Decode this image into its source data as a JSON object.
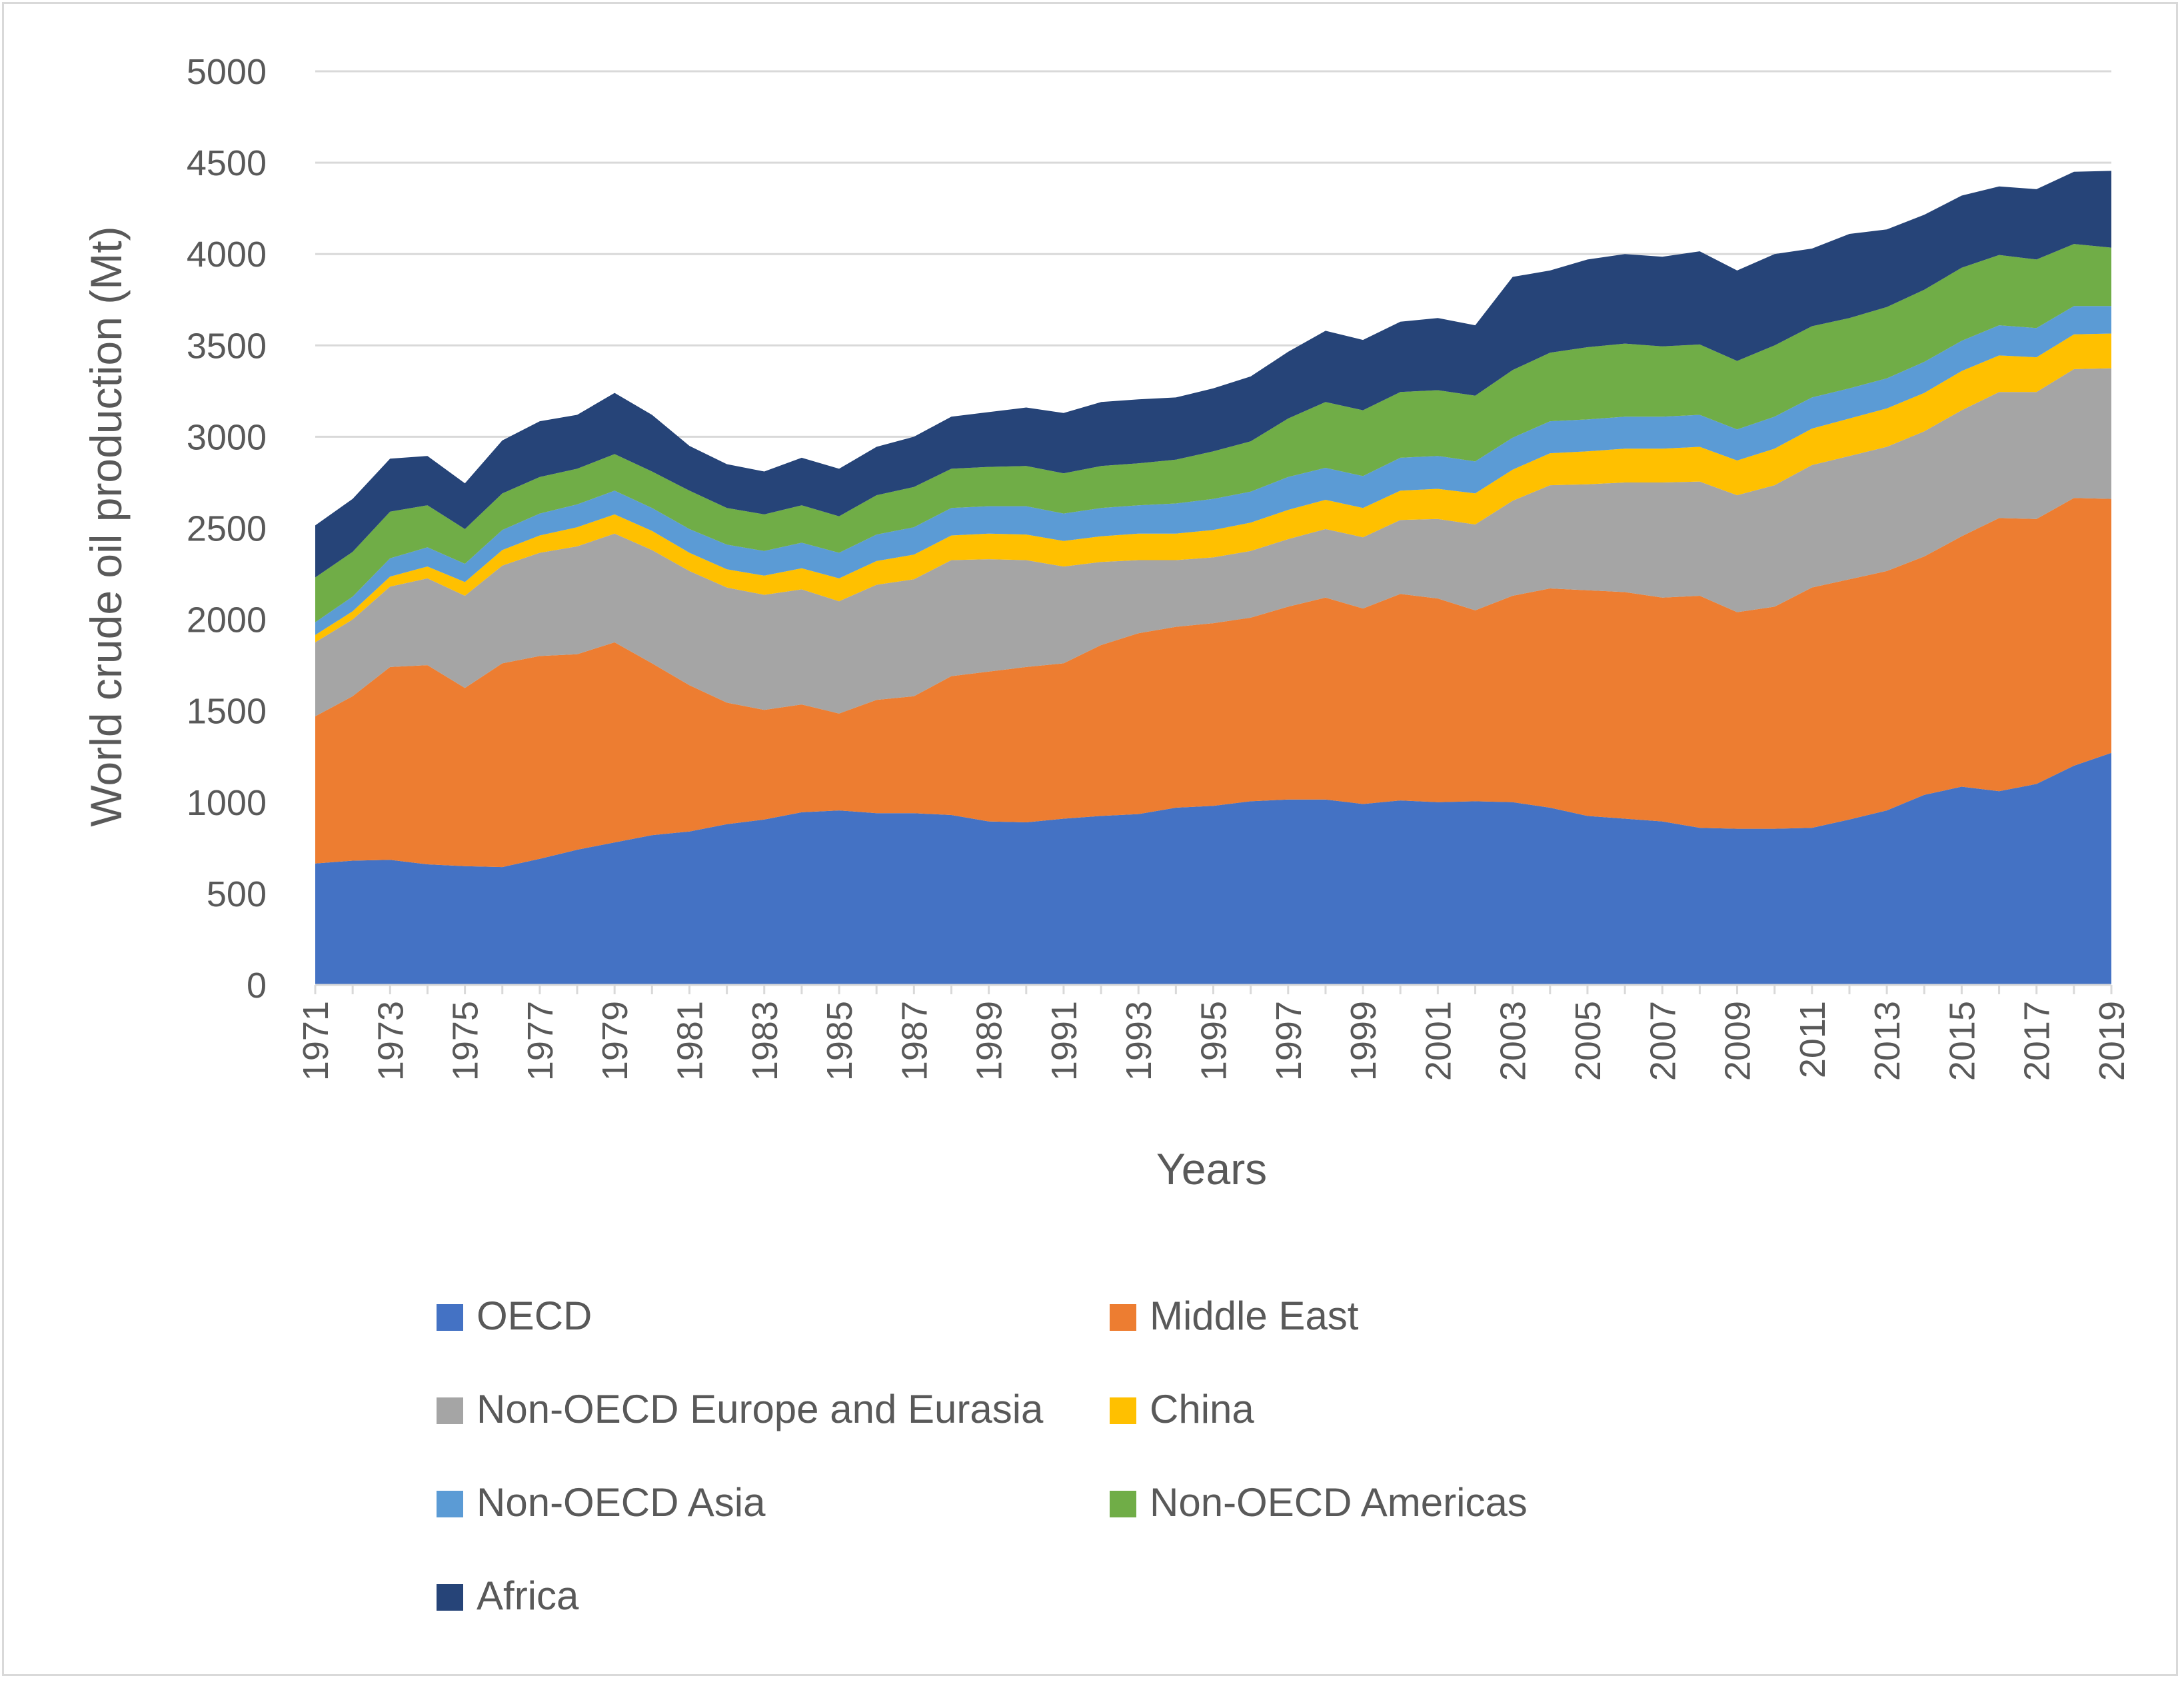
{
  "chart_data": {
    "type": "area",
    "stacked": true,
    "title": "",
    "xlabel": "Years",
    "ylabel": "World crude oil production (Mt)",
    "ylim": [
      0,
      5000
    ],
    "yticks": [
      0,
      500,
      1000,
      1500,
      2000,
      2500,
      3000,
      3500,
      4000,
      4500,
      5000
    ],
    "grid": true,
    "legend_position": "bottom",
    "x": [
      1971,
      1972,
      1973,
      1974,
      1975,
      1976,
      1977,
      1978,
      1979,
      1980,
      1981,
      1982,
      1983,
      1984,
      1985,
      1986,
      1987,
      1988,
      1989,
      1990,
      1991,
      1992,
      1993,
      1994,
      1995,
      1996,
      1997,
      1998,
      1999,
      2000,
      2001,
      2002,
      2003,
      2004,
      2005,
      2006,
      2007,
      2008,
      2009,
      2010,
      2011,
      2012,
      2013,
      2014,
      2015,
      2016,
      2017,
      2018,
      2019
    ],
    "xtick_labels": [
      "1971",
      "1973",
      "1975",
      "1977",
      "1979",
      "1981",
      "1983",
      "1985",
      "1987",
      "1989",
      "1991",
      "1993",
      "1995",
      "1997",
      "1999",
      "2001",
      "2003",
      "2005",
      "2007",
      "2009",
      "2011",
      "2013",
      "2015",
      "2017",
      "2019"
    ],
    "series": [
      {
        "name": "OECD",
        "color": "#4472c4",
        "values": [
          665,
          680,
          685,
          660,
          650,
          645,
          690,
          740,
          780,
          820,
          840,
          880,
          905,
          945,
          955,
          940,
          940,
          930,
          895,
          890,
          910,
          925,
          935,
          970,
          980,
          1005,
          1015,
          1015,
          990,
          1010,
          1000,
          1005,
          1000,
          970,
          925,
          910,
          895,
          860,
          855,
          855,
          860,
          905,
          955,
          1040,
          1085,
          1060,
          1100,
          1200,
          1270
        ]
      },
      {
        "name": "Middle East",
        "color": "#ed7d31",
        "values": [
          805,
          900,
          1055,
          1090,
          975,
          1115,
          1110,
          1070,
          1095,
          940,
          800,
          665,
          600,
          590,
          530,
          620,
          640,
          760,
          820,
          850,
          850,
          935,
          990,
          990,
          1000,
          1005,
          1055,
          1105,
          1070,
          1130,
          1115,
          1045,
          1130,
          1200,
          1235,
          1240,
          1225,
          1270,
          1185,
          1215,
          1315,
          1315,
          1310,
          1305,
          1370,
          1495,
          1450,
          1465,
          1390
        ]
      },
      {
        "name": "Non-OECD Europe and Eurasia",
        "color": "#a5a5a5",
        "values": [
          405,
          420,
          440,
          475,
          505,
          535,
          565,
          590,
          595,
          620,
          625,
          630,
          630,
          630,
          615,
          630,
          640,
          635,
          615,
          585,
          530,
          455,
          400,
          365,
          360,
          365,
          370,
          375,
          390,
          405,
          435,
          470,
          520,
          565,
          580,
          600,
          630,
          625,
          640,
          665,
          670,
          675,
          680,
          685,
          690,
          690,
          695,
          705,
          715
        ]
      },
      {
        "name": "China",
        "color": "#ffc000",
        "values": [
          40,
          45,
          55,
          65,
          75,
          85,
          95,
          105,
          105,
          105,
          100,
          100,
          105,
          115,
          125,
          130,
          135,
          135,
          140,
          140,
          140,
          140,
          145,
          145,
          150,
          155,
          160,
          160,
          160,
          160,
          165,
          170,
          170,
          175,
          180,
          185,
          185,
          190,
          190,
          200,
          200,
          205,
          210,
          210,
          215,
          200,
          190,
          190,
          190
        ]
      },
      {
        "name": "Non-OECD Asia",
        "color": "#5b9bd5",
        "values": [
          70,
          80,
          100,
          105,
          100,
          110,
          120,
          125,
          130,
          125,
          130,
          135,
          135,
          140,
          140,
          145,
          150,
          150,
          150,
          155,
          150,
          155,
          155,
          165,
          170,
          170,
          180,
          175,
          175,
          180,
          180,
          175,
          175,
          175,
          175,
          175,
          175,
          175,
          170,
          175,
          170,
          165,
          165,
          170,
          165,
          165,
          160,
          155,
          150
        ]
      },
      {
        "name": "Non-OECD Americas",
        "color": "#70ad47",
        "values": [
          245,
          245,
          255,
          230,
          190,
          200,
          200,
          195,
          200,
          200,
          210,
          200,
          200,
          205,
          200,
          215,
          220,
          215,
          215,
          220,
          220,
          230,
          230,
          240,
          260,
          275,
          320,
          360,
          360,
          360,
          360,
          360,
          370,
          375,
          395,
          400,
          385,
          385,
          375,
          390,
          390,
          385,
          390,
          395,
          400,
          385,
          375,
          340,
          320
        ]
      },
      {
        "name": "Africa",
        "color": "#264478",
        "values": [
          285,
          290,
          290,
          270,
          250,
          290,
          305,
          295,
          335,
          310,
          245,
          240,
          235,
          260,
          260,
          265,
          275,
          285,
          300,
          320,
          330,
          350,
          350,
          340,
          345,
          355,
          365,
          390,
          385,
          385,
          395,
          385,
          510,
          450,
          480,
          490,
          490,
          510,
          495,
          500,
          425,
          460,
          425,
          410,
          395,
          375,
          385,
          395,
          420
        ]
      }
    ]
  }
}
